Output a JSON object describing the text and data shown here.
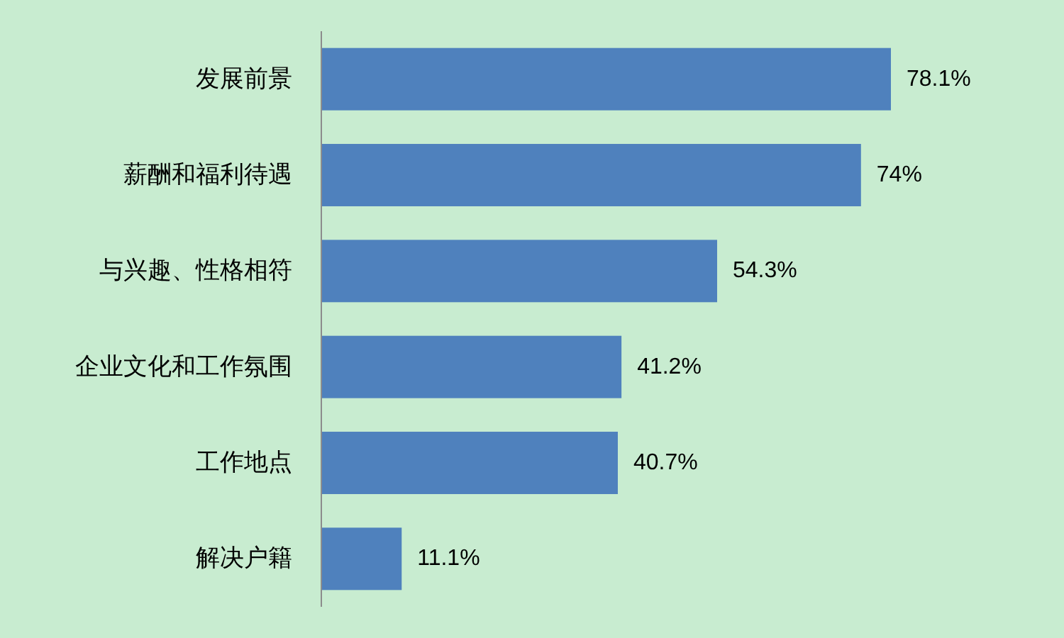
{
  "chart_data": {
    "type": "bar",
    "orientation": "horizontal",
    "categories": [
      "发展前景",
      "薪酬和福利待遇",
      "与兴趣、性格相符",
      "企业文化和工作氛围",
      "工作地点",
      "解决户籍"
    ],
    "values": [
      78.1,
      74,
      54.3,
      41.2,
      40.7,
      11.1
    ],
    "value_labels": [
      "78.1%",
      "74%",
      "54.3%",
      "41.2%",
      "40.7%",
      "11.1%"
    ],
    "color": "#4f81bd"
  }
}
